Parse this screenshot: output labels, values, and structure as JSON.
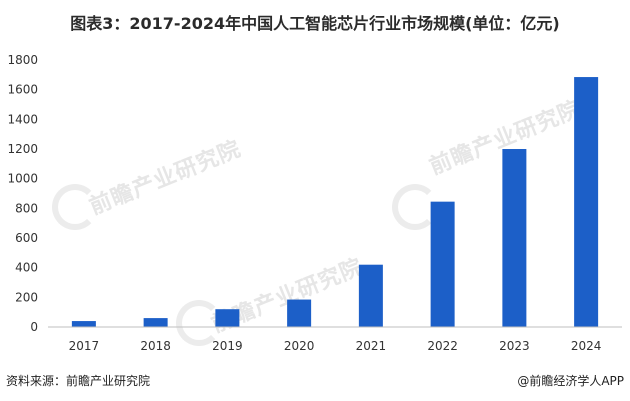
{
  "title": "图表3：2017-2024年中国人工智能芯片行业市场规模(单位：亿元)",
  "source": "资料来源：前瞻产业研究院",
  "brand": "@前瞻经济学人APP",
  "watermark_text": "前瞻产业研究院",
  "bar_color": "#1c5fc8",
  "chart_data": {
    "type": "bar",
    "title": "图表3：2017-2024年中国人工智能芯片行业市场规模(单位：亿元)",
    "categories": [
      "2017",
      "2018",
      "2019",
      "2020",
      "2021",
      "2022",
      "2023",
      "2024"
    ],
    "values": [
      40,
      60,
      120,
      185,
      420,
      845,
      1200,
      1685
    ],
    "ylim": [
      0,
      1800
    ],
    "yticks": [
      0,
      200,
      400,
      600,
      800,
      1000,
      1200,
      1400,
      1600,
      1800
    ],
    "grid": false,
    "legend": "none"
  }
}
